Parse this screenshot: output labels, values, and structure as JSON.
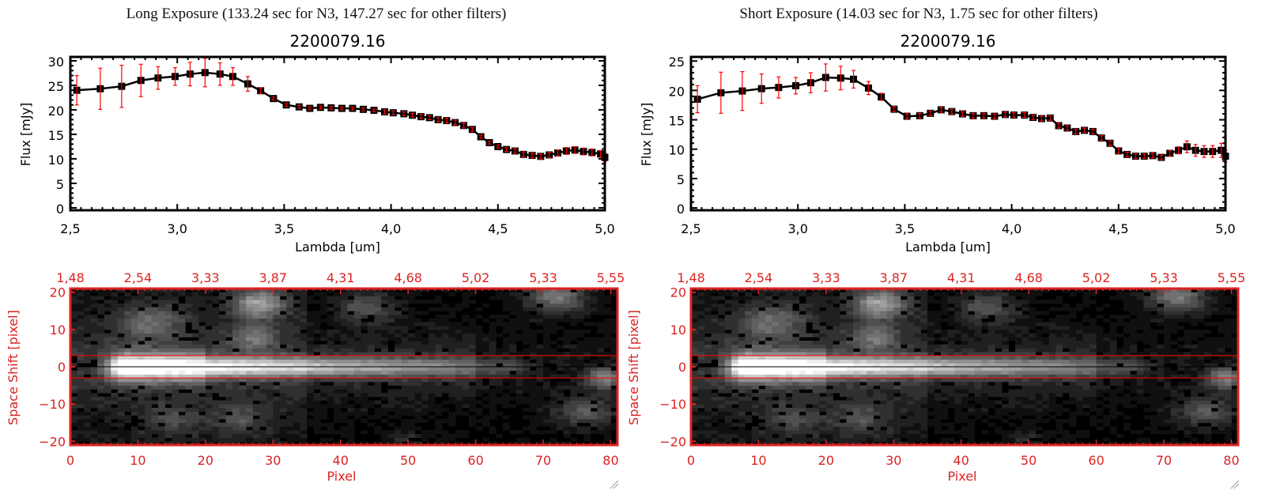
{
  "colors": {
    "axis_spectrum": "#000000",
    "error_bar": "#ff0000",
    "image_axis": "#dd2222",
    "slit_line": "#ff0000",
    "center_line": "#000000"
  },
  "chart_data": [
    {
      "type": "line",
      "panel_title": "Long Exposure (133.24 sec for N3, 147.27 sec for other filters)",
      "title": "2200079.16",
      "xlabel": "Lambda [um]",
      "ylabel": "Flux [mJy]",
      "xlim": [
        2.5,
        5.0
      ],
      "ylim": [
        -0.5,
        30.8
      ],
      "xticks": [
        "2.5",
        "3.0",
        "3.5",
        "4.0",
        "4.5",
        "5.0"
      ],
      "yticks": [
        "0",
        "5",
        "10",
        "15",
        "20",
        "25",
        "30"
      ],
      "x": [
        2.53,
        2.64,
        2.74,
        2.83,
        2.91,
        2.99,
        3.06,
        3.13,
        3.2,
        3.26,
        3.33,
        3.39,
        3.45,
        3.51,
        3.57,
        3.62,
        3.67,
        3.72,
        3.77,
        3.82,
        3.87,
        3.92,
        3.97,
        4.01,
        4.06,
        4.1,
        4.14,
        4.18,
        4.22,
        4.26,
        4.3,
        4.34,
        4.38,
        4.42,
        4.46,
        4.5,
        4.54,
        4.58,
        4.62,
        4.66,
        4.7,
        4.74,
        4.78,
        4.82,
        4.86,
        4.9,
        4.94,
        4.98,
        5.0
      ],
      "y": [
        24.0,
        24.3,
        24.8,
        26.0,
        26.5,
        26.8,
        27.3,
        27.6,
        27.3,
        26.8,
        25.3,
        23.9,
        22.3,
        21.0,
        20.6,
        20.3,
        20.5,
        20.4,
        20.3,
        20.3,
        20.1,
        19.9,
        19.6,
        19.4,
        19.2,
        18.9,
        18.6,
        18.4,
        18.0,
        17.8,
        17.4,
        16.8,
        16.0,
        14.5,
        13.3,
        12.5,
        11.9,
        11.6,
        10.9,
        10.7,
        10.5,
        10.8,
        11.2,
        11.6,
        11.8,
        11.5,
        11.3,
        11.0,
        10.3
      ],
      "yerr": [
        3.0,
        4.2,
        4.3,
        3.3,
        2.3,
        1.8,
        2.4,
        2.9,
        2.3,
        1.8,
        1.5,
        0.6,
        0.3,
        0.3,
        0.3,
        0.3,
        0.3,
        0.3,
        0.3,
        0.3,
        0.3,
        0.3,
        0.4,
        0.4,
        0.4,
        0.4,
        0.4,
        0.4,
        0.4,
        0.5,
        0.5,
        0.5,
        0.4,
        0.3,
        0.3,
        0.3,
        0.4,
        0.5,
        0.5,
        0.5,
        0.5,
        0.5,
        0.6,
        0.7,
        0.7,
        0.7,
        0.7,
        0.7,
        0.8
      ]
    },
    {
      "type": "line",
      "panel_title": "Short Exposure (14.03 sec for N3, 1.75 sec for other filters)",
      "title": "2200079.16",
      "xlabel": "Lambda [um]",
      "ylabel": "Flux [mJy]",
      "xlim": [
        2.5,
        5.0
      ],
      "ylim": [
        -0.4,
        25.7
      ],
      "xticks": [
        "2.5",
        "3.0",
        "3.5",
        "4.0",
        "4.5",
        "5.0"
      ],
      "yticks": [
        "0",
        "5",
        "10",
        "15",
        "20",
        "25"
      ],
      "x": [
        2.53,
        2.64,
        2.74,
        2.83,
        2.91,
        2.99,
        3.06,
        3.13,
        3.2,
        3.26,
        3.33,
        3.39,
        3.45,
        3.51,
        3.57,
        3.62,
        3.67,
        3.72,
        3.77,
        3.82,
        3.87,
        3.92,
        3.97,
        4.01,
        4.06,
        4.1,
        4.14,
        4.18,
        4.22,
        4.26,
        4.3,
        4.34,
        4.38,
        4.42,
        4.46,
        4.5,
        4.54,
        4.58,
        4.62,
        4.66,
        4.7,
        4.74,
        4.78,
        4.82,
        4.86,
        4.9,
        4.94,
        4.98,
        5.0
      ],
      "y": [
        18.5,
        19.6,
        19.9,
        20.3,
        20.5,
        20.8,
        21.3,
        22.2,
        22.1,
        21.9,
        20.4,
        18.9,
        16.8,
        15.6,
        15.7,
        16.1,
        16.7,
        16.4,
        16.0,
        15.7,
        15.7,
        15.6,
        15.9,
        15.8,
        15.8,
        15.4,
        15.2,
        15.3,
        14.0,
        13.6,
        13.0,
        13.2,
        13.0,
        11.9,
        11.0,
        9.7,
        9.1,
        8.8,
        8.8,
        8.9,
        8.6,
        9.3,
        9.8,
        10.4,
        9.8,
        9.6,
        9.6,
        9.8,
        8.8
      ],
      "yerr": [
        2.3,
        3.5,
        3.3,
        2.5,
        1.8,
        1.4,
        1.7,
        2.3,
        2.0,
        1.5,
        1.1,
        0.6,
        0.4,
        0.4,
        0.4,
        0.4,
        0.4,
        0.4,
        0.4,
        0.4,
        0.4,
        0.4,
        0.4,
        0.4,
        0.4,
        0.4,
        0.4,
        0.4,
        0.4,
        0.4,
        0.4,
        0.4,
        0.4,
        0.4,
        0.4,
        0.4,
        0.4,
        0.4,
        0.4,
        0.4,
        0.4,
        0.5,
        0.6,
        1.0,
        1.0,
        1.0,
        1.0,
        1.2,
        1.0
      ]
    },
    {
      "type": "heatmap",
      "xlabel": "Pixel",
      "ylabel": "Space Shift [pixel]",
      "xlim": [
        0,
        81
      ],
      "ylim": [
        -21,
        21
      ],
      "xticks": [
        "0",
        "10",
        "20",
        "30",
        "40",
        "50",
        "60",
        "70",
        "80"
      ],
      "yticks": [
        "-20",
        "-10",
        "0",
        "10",
        "20"
      ],
      "top_xticks": [
        "1.48",
        "2.54",
        "3.33",
        "3.87",
        "4.31",
        "4.68",
        "5.02",
        "5.33",
        "5.55"
      ],
      "aperture_lines": [
        -3,
        3
      ],
      "center_line": 0,
      "colormap": "grayscale"
    },
    {
      "type": "heatmap",
      "xlabel": "Pixel",
      "ylabel": "Space Shift [pixel]",
      "xlim": [
        0,
        81
      ],
      "ylim": [
        -21,
        21
      ],
      "xticks": [
        "0",
        "10",
        "20",
        "30",
        "40",
        "50",
        "60",
        "70",
        "80"
      ],
      "yticks": [
        "-20",
        "-10",
        "0",
        "10",
        "20"
      ],
      "top_xticks": [
        "1.48",
        "2.54",
        "3.33",
        "3.87",
        "4.31",
        "4.68",
        "5.02",
        "5.33",
        "5.55"
      ],
      "aperture_lines": [
        -3,
        3
      ],
      "center_line": 0,
      "colormap": "grayscale"
    }
  ]
}
